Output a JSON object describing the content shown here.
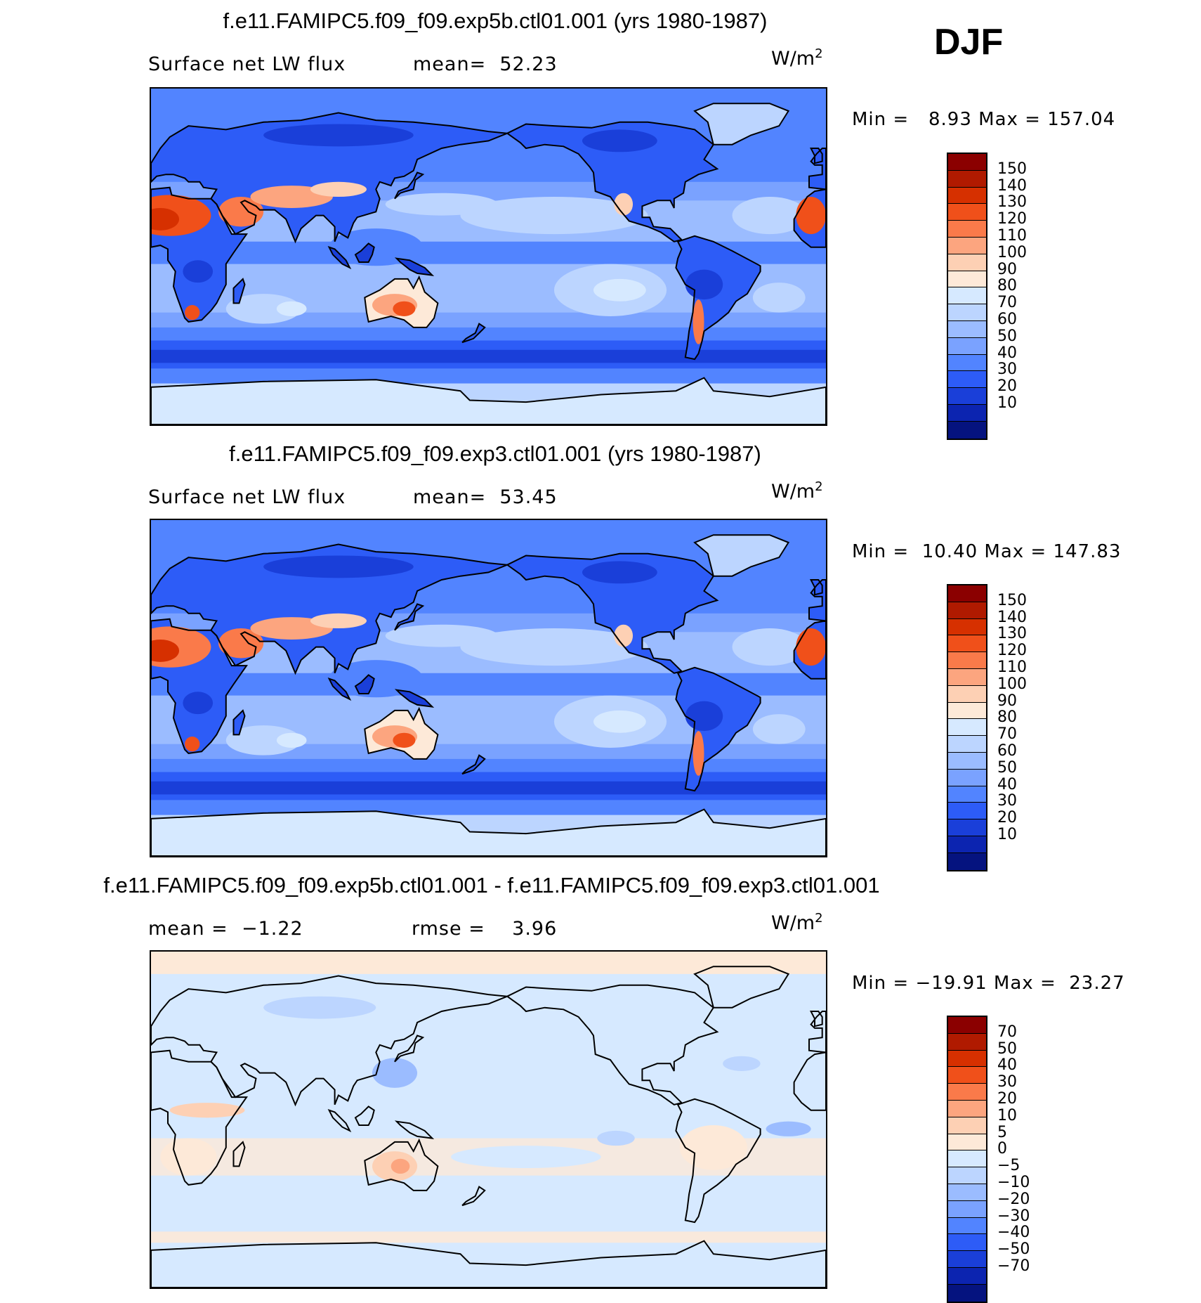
{
  "season": "DJF",
  "panels": [
    {
      "title": "f.e11.FAMIPC5.f09_f09.exp5b.ctl01.001 (yrs 1980-1987)",
      "left_label": "Surface net LW flux",
      "mid_label": "mean=  52.23",
      "units_base": "W/m",
      "units_sup": "2",
      "minmax": "Min =   8.93 Max = 157.04",
      "colorbar": {
        "colors": [
          "#8b0000",
          "#b01a00",
          "#d63000",
          "#f0501a",
          "#fa7a4a",
          "#fca57f",
          "#fdd0b4",
          "#fde9d8",
          "#d6e9ff",
          "#bcd5ff",
          "#9bbcff",
          "#7aa2ff",
          "#5284ff",
          "#2d5cf7",
          "#1a3fd9",
          "#0c24b0",
          "#05137f"
        ],
        "labels": [
          "150",
          "140",
          "130",
          "120",
          "110",
          "100",
          "90",
          "80",
          "70",
          "60",
          "50",
          "40",
          "30",
          "20",
          "10"
        ]
      }
    },
    {
      "title": "f.e11.FAMIPC5.f09_f09.exp3.ctl01.001 (yrs 1980-1987)",
      "left_label": "Surface net LW flux",
      "mid_label": "mean=  53.45",
      "units_base": "W/m",
      "units_sup": "2",
      "minmax": "Min =  10.40 Max = 147.83",
      "colorbar": {
        "colors": [
          "#8b0000",
          "#b01a00",
          "#d63000",
          "#f0501a",
          "#fa7a4a",
          "#fca57f",
          "#fdd0b4",
          "#fde9d8",
          "#d6e9ff",
          "#bcd5ff",
          "#9bbcff",
          "#7aa2ff",
          "#5284ff",
          "#2d5cf7",
          "#1a3fd9",
          "#0c24b0",
          "#05137f"
        ],
        "labels": [
          "150",
          "140",
          "130",
          "120",
          "110",
          "100",
          "90",
          "80",
          "70",
          "60",
          "50",
          "40",
          "30",
          "20",
          "10"
        ]
      }
    },
    {
      "title": "f.e11.FAMIPC5.f09_f09.exp5b.ctl01.001 - f.e11.FAMIPC5.f09_f09.exp3.ctl01.001",
      "left_label": "mean =  −1.22",
      "mid_label": "rmse =    3.96",
      "units_base": "W/m",
      "units_sup": "2",
      "minmax": "Min = −19.91 Max =  23.27",
      "colorbar": {
        "colors": [
          "#8b0000",
          "#b01a00",
          "#d63000",
          "#f0501a",
          "#fa7a4a",
          "#fca57f",
          "#fdd0b4",
          "#fde9d8",
          "#d6e9ff",
          "#bcd5ff",
          "#9bbcff",
          "#7aa2ff",
          "#5284ff",
          "#2d5cf7",
          "#1a3fd9",
          "#0c24b0",
          "#05137f"
        ],
        "labels": [
          "70",
          "50",
          "40",
          "30",
          "20",
          "10",
          "5",
          "0",
          "−5",
          "−10",
          "−20",
          "−30",
          "−40",
          "−50",
          "−70"
        ]
      }
    }
  ]
}
